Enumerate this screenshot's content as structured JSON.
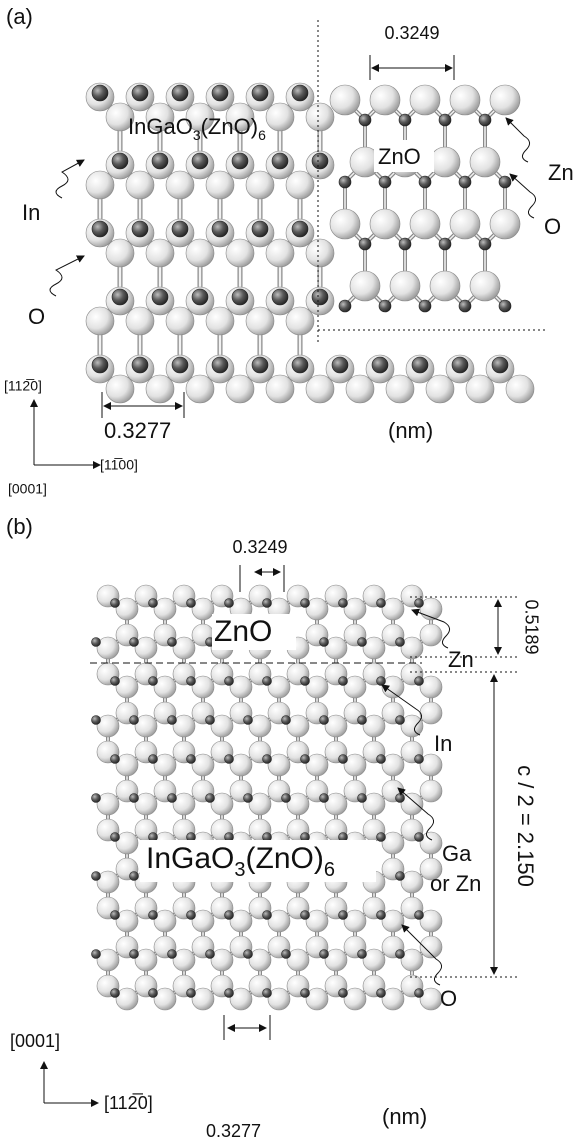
{
  "panel_a": {
    "label": "(a)",
    "zno_spacing": "0.3249",
    "formula": [
      "InGaO",
      "3",
      "(ZnO)",
      "6"
    ],
    "zno_label": "ZnO",
    "atom_labels": [
      "Zn",
      "In",
      "O",
      "O"
    ],
    "direction_y": "[112̅0]",
    "direction_x": "[11̅00]",
    "direction_z": "[0001]",
    "spacing": "0.3277",
    "unit": "(nm)"
  },
  "panel_b": {
    "label": "(b)",
    "zno_spacing": "0.3249",
    "zno_thickness": "0.5189",
    "zno_label": "ZnO",
    "formula": [
      "InGaO",
      "3",
      "(ZnO)",
      "6"
    ],
    "atom_labels": [
      "Zn",
      "In",
      "Ga",
      "or Zn",
      "O"
    ],
    "period": "c / 2 = 2.150",
    "direction_y": "[0001]",
    "direction_x": "[112̅0]",
    "spacing": "0.3277",
    "unit": "(nm)"
  }
}
